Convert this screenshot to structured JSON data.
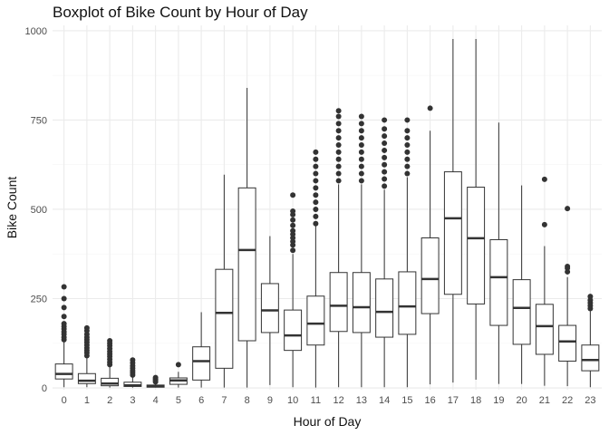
{
  "chart_data": {
    "type": "boxplot",
    "title": "Boxplot of Bike Count by Hour of Day",
    "xlabel": "Hour of Day",
    "ylabel": "Bike Count",
    "ylim": [
      -5,
      1015
    ],
    "yticks": [
      0,
      250,
      500,
      750,
      1000
    ],
    "grid": true,
    "colors": {
      "grid_major": "#ebebeb",
      "grid_minor": "#f4f4f4",
      "box": "#333333",
      "text": "#4d4d4d"
    },
    "categories": [
      "0",
      "1",
      "2",
      "3",
      "4",
      "5",
      "6",
      "7",
      "8",
      "9",
      "10",
      "11",
      "12",
      "13",
      "14",
      "15",
      "16",
      "17",
      "18",
      "19",
      "20",
      "21",
      "22",
      "23"
    ],
    "boxes": [
      {
        "hour": "0",
        "min": 2,
        "q1": 25,
        "median": 39,
        "q3": 67,
        "max": 128,
        "outliers": [
          135,
          142,
          150,
          157,
          165,
          172,
          180,
          200,
          225,
          250,
          283
        ]
      },
      {
        "hour": "1",
        "min": 2,
        "q1": 12,
        "median": 20,
        "q3": 40,
        "max": 86,
        "outliers": [
          90,
          98,
          105,
          112,
          120,
          128,
          135,
          142,
          150,
          160,
          168
        ]
      },
      {
        "hour": "2",
        "min": 1,
        "q1": 6,
        "median": 12,
        "q3": 27,
        "max": 60,
        "outliers": [
          65,
          72,
          80,
          88,
          95,
          102,
          110,
          118,
          125,
          132
        ]
      },
      {
        "hour": "3",
        "min": 1,
        "q1": 4,
        "median": 7,
        "q3": 16,
        "max": 32,
        "outliers": [
          36,
          42,
          48,
          55,
          62,
          70,
          78
        ]
      },
      {
        "hour": "4",
        "min": 1,
        "q1": 2,
        "median": 5,
        "q3": 8,
        "max": 14,
        "outliers": [
          17,
          21,
          25,
          29
        ]
      },
      {
        "hour": "5",
        "min": 1,
        "q1": 10,
        "median": 21,
        "q3": 28,
        "max": 45,
        "outliers": [
          65
        ]
      },
      {
        "hour": "6",
        "min": 1,
        "q1": 22,
        "median": 75,
        "q3": 115,
        "max": 212,
        "outliers": []
      },
      {
        "hour": "7",
        "min": 1,
        "q1": 55,
        "median": 210,
        "q3": 332,
        "max": 597,
        "outliers": []
      },
      {
        "hour": "8",
        "min": 1,
        "q1": 132,
        "median": 386,
        "q3": 560,
        "max": 840,
        "outliers": []
      },
      {
        "hour": "9",
        "min": 8,
        "q1": 155,
        "median": 217,
        "q3": 292,
        "max": 425,
        "outliers": []
      },
      {
        "hour": "10",
        "min": 2,
        "q1": 105,
        "median": 147,
        "q3": 218,
        "max": 375,
        "outliers": [
          385,
          400,
          410,
          420,
          430,
          440,
          455,
          470,
          485,
          495,
          540
        ]
      },
      {
        "hour": "11",
        "min": 1,
        "q1": 120,
        "median": 180,
        "q3": 257,
        "max": 455,
        "outliers": [
          460,
          480,
          500,
          520,
          540,
          560,
          580,
          600,
          620,
          640,
          660
        ]
      },
      {
        "hour": "12",
        "min": 2,
        "q1": 158,
        "median": 230,
        "q3": 323,
        "max": 570,
        "outliers": [
          580,
          600,
          620,
          640,
          660,
          680,
          700,
          720,
          740,
          760,
          776
        ]
      },
      {
        "hour": "13",
        "min": 2,
        "q1": 155,
        "median": 226,
        "q3": 323,
        "max": 570,
        "outliers": [
          580,
          600,
          620,
          640,
          660,
          680,
          700,
          720,
          740,
          760
        ]
      },
      {
        "hour": "14",
        "min": 2,
        "q1": 142,
        "median": 213,
        "q3": 305,
        "max": 555,
        "outliers": [
          565,
          585,
          605,
          625,
          645,
          665,
          685,
          705,
          725,
          750
        ]
      },
      {
        "hour": "15",
        "min": 2,
        "q1": 150,
        "median": 228,
        "q3": 325,
        "max": 590,
        "outliers": [
          600,
          620,
          640,
          660,
          680,
          700,
          720,
          750
        ]
      },
      {
        "hour": "16",
        "min": 10,
        "q1": 208,
        "median": 305,
        "q3": 420,
        "max": 720,
        "outliers": [
          783
        ]
      },
      {
        "hour": "17",
        "min": 15,
        "q1": 262,
        "median": 475,
        "q3": 605,
        "max": 977,
        "outliers": []
      },
      {
        "hour": "18",
        "min": 23,
        "q1": 235,
        "median": 419,
        "q3": 562,
        "max": 977,
        "outliers": []
      },
      {
        "hour": "19",
        "min": 11,
        "q1": 175,
        "median": 310,
        "q3": 415,
        "max": 743,
        "outliers": []
      },
      {
        "hour": "20",
        "min": 11,
        "q1": 122,
        "median": 224,
        "q3": 303,
        "max": 567,
        "outliers": []
      },
      {
        "hour": "21",
        "min": 6,
        "q1": 94,
        "median": 173,
        "q3": 234,
        "max": 397,
        "outliers": [
          457,
          584
        ]
      },
      {
        "hour": "22",
        "min": 5,
        "q1": 75,
        "median": 130,
        "q3": 175,
        "max": 310,
        "outliers": [
          325,
          335,
          340,
          502
        ]
      },
      {
        "hour": "23",
        "min": 2,
        "q1": 48,
        "median": 78,
        "q3": 120,
        "max": 215,
        "outliers": [
          222,
          230,
          238,
          246,
          256
        ]
      }
    ]
  }
}
